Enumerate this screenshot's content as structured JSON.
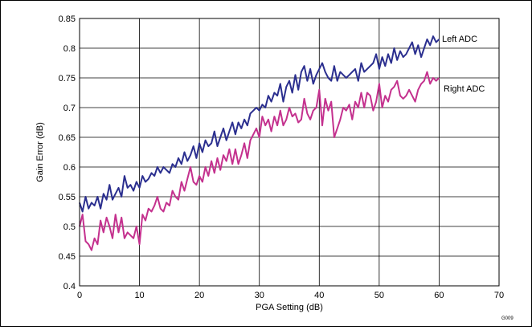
{
  "chart_data": {
    "type": "line",
    "xlabel": "PGA Setting (dB)",
    "ylabel": "Gain Error (dB)",
    "xlim": [
      0,
      70
    ],
    "ylim": [
      0.4,
      0.85
    ],
    "xticks": [
      0,
      10,
      20,
      30,
      40,
      50,
      60,
      70
    ],
    "yticks": [
      0.4,
      0.45,
      0.5,
      0.55,
      0.6,
      0.65,
      0.7,
      0.75,
      0.8,
      0.85
    ],
    "xtick_labels": [
      "0",
      "10",
      "20",
      "30",
      "40",
      "50",
      "60",
      "70"
    ],
    "ytick_labels": [
      "0.4",
      "0.45",
      "0.5",
      "0.55",
      "0.6",
      "0.65",
      "0.7",
      "0.75",
      "0.8",
      "0.85"
    ],
    "grid": true,
    "figure_id": "G009",
    "colors": {
      "left": "#2b2f8f",
      "right": "#c4318e"
    },
    "series": [
      {
        "name": "Left ADC",
        "x": [
          0,
          0.5,
          1,
          1.5,
          2,
          2.5,
          3,
          3.5,
          4,
          4.5,
          5,
          5.5,
          6,
          6.5,
          7,
          7.5,
          8,
          8.5,
          9,
          9.5,
          10,
          10.5,
          11,
          11.5,
          12,
          12.5,
          13,
          13.5,
          14,
          14.5,
          15,
          15.5,
          16,
          16.5,
          17,
          17.5,
          18,
          18.5,
          19,
          19.5,
          20,
          20.5,
          21,
          21.5,
          22,
          22.5,
          23,
          23.5,
          24,
          24.5,
          25,
          25.5,
          26,
          26.5,
          27,
          27.5,
          28,
          28.5,
          29,
          29.5,
          30,
          30.5,
          31,
          31.5,
          32,
          32.5,
          33,
          33.5,
          34,
          34.5,
          35,
          35.5,
          36,
          36.5,
          37,
          37.5,
          38,
          38.5,
          39,
          39.5,
          40,
          40.5,
          41,
          41.5,
          42,
          42.5,
          43,
          43.5,
          44,
          44.5,
          45,
          45.5,
          46,
          46.5,
          47,
          47.5,
          48,
          48.5,
          49,
          49.5,
          50,
          50.5,
          51,
          51.5,
          52,
          52.5,
          53,
          53.5,
          54,
          54.5,
          55,
          55.5,
          56,
          56.5,
          57,
          57.5,
          58,
          58.5,
          59,
          59.5,
          60
        ],
        "y": [
          0.54,
          0.525,
          0.55,
          0.53,
          0.54,
          0.535,
          0.55,
          0.53,
          0.555,
          0.545,
          0.57,
          0.545,
          0.555,
          0.565,
          0.55,
          0.585,
          0.565,
          0.57,
          0.56,
          0.575,
          0.565,
          0.585,
          0.575,
          0.58,
          0.59,
          0.585,
          0.6,
          0.59,
          0.6,
          0.595,
          0.59,
          0.605,
          0.6,
          0.615,
          0.605,
          0.625,
          0.61,
          0.62,
          0.635,
          0.615,
          0.64,
          0.625,
          0.645,
          0.635,
          0.64,
          0.66,
          0.635,
          0.65,
          0.665,
          0.645,
          0.66,
          0.675,
          0.655,
          0.675,
          0.665,
          0.68,
          0.67,
          0.69,
          0.695,
          0.7,
          0.695,
          0.705,
          0.7,
          0.72,
          0.71,
          0.725,
          0.72,
          0.74,
          0.71,
          0.735,
          0.745,
          0.725,
          0.755,
          0.73,
          0.76,
          0.77,
          0.745,
          0.765,
          0.74,
          0.755,
          0.765,
          0.775,
          0.76,
          0.75,
          0.745,
          0.77,
          0.745,
          0.76,
          0.755,
          0.75,
          0.755,
          0.76,
          0.765,
          0.745,
          0.775,
          0.76,
          0.765,
          0.77,
          0.775,
          0.79,
          0.765,
          0.785,
          0.77,
          0.79,
          0.775,
          0.8,
          0.78,
          0.795,
          0.785,
          0.79,
          0.8,
          0.81,
          0.79,
          0.805,
          0.785,
          0.8,
          0.815,
          0.805,
          0.82,
          0.81,
          0.815
        ]
      },
      {
        "name": "Right ADC",
        "x": [
          0,
          0.5,
          1,
          1.5,
          2,
          2.5,
          3,
          3.5,
          4,
          4.5,
          5,
          5.5,
          6,
          6.5,
          7,
          7.5,
          8,
          8.5,
          9,
          9.5,
          10,
          10.5,
          11,
          11.5,
          12,
          12.5,
          13,
          13.5,
          14,
          14.5,
          15,
          15.5,
          16,
          16.5,
          17,
          17.5,
          18,
          18.5,
          19,
          19.5,
          20,
          20.5,
          21,
          21.5,
          22,
          22.5,
          23,
          23.5,
          24,
          24.5,
          25,
          25.5,
          26,
          26.5,
          27,
          27.5,
          28,
          28.5,
          29,
          29.5,
          30,
          30.5,
          31,
          31.5,
          32,
          32.5,
          33,
          33.5,
          34,
          34.5,
          35,
          35.5,
          36,
          36.5,
          37,
          37.5,
          38,
          38.5,
          39,
          39.5,
          40,
          40.5,
          41,
          41.5,
          42,
          42.5,
          43,
          43.5,
          44,
          44.5,
          45,
          45.5,
          46,
          46.5,
          47,
          47.5,
          48,
          48.5,
          49,
          49.5,
          50,
          50.5,
          51,
          51.5,
          52,
          52.5,
          53,
          53.5,
          54,
          54.5,
          55,
          55.5,
          56,
          56.5,
          57,
          57.5,
          58,
          58.5,
          59,
          59.5,
          60
        ],
        "y": [
          0.5,
          0.52,
          0.475,
          0.47,
          0.46,
          0.48,
          0.47,
          0.51,
          0.49,
          0.515,
          0.5,
          0.48,
          0.52,
          0.49,
          0.515,
          0.48,
          0.49,
          0.485,
          0.48,
          0.5,
          0.47,
          0.52,
          0.51,
          0.53,
          0.525,
          0.535,
          0.55,
          0.53,
          0.525,
          0.54,
          0.535,
          0.56,
          0.55,
          0.545,
          0.575,
          0.56,
          0.58,
          0.6,
          0.575,
          0.57,
          0.585,
          0.575,
          0.6,
          0.585,
          0.61,
          0.59,
          0.615,
          0.595,
          0.62,
          0.61,
          0.63,
          0.605,
          0.63,
          0.605,
          0.62,
          0.64,
          0.615,
          0.645,
          0.655,
          0.665,
          0.65,
          0.685,
          0.67,
          0.68,
          0.66,
          0.685,
          0.67,
          0.695,
          0.67,
          0.68,
          0.7,
          0.685,
          0.69,
          0.675,
          0.68,
          0.715,
          0.69,
          0.68,
          0.695,
          0.7,
          0.73,
          0.67,
          0.715,
          0.695,
          0.71,
          0.65,
          0.665,
          0.68,
          0.7,
          0.695,
          0.705,
          0.68,
          0.71,
          0.7,
          0.725,
          0.7,
          0.725,
          0.72,
          0.695,
          0.71,
          0.74,
          0.7,
          0.72,
          0.71,
          0.73,
          0.735,
          0.745,
          0.72,
          0.715,
          0.72,
          0.73,
          0.72,
          0.71,
          0.73,
          0.74,
          0.745,
          0.76,
          0.74,
          0.75,
          0.745,
          0.75
        ]
      }
    ]
  }
}
